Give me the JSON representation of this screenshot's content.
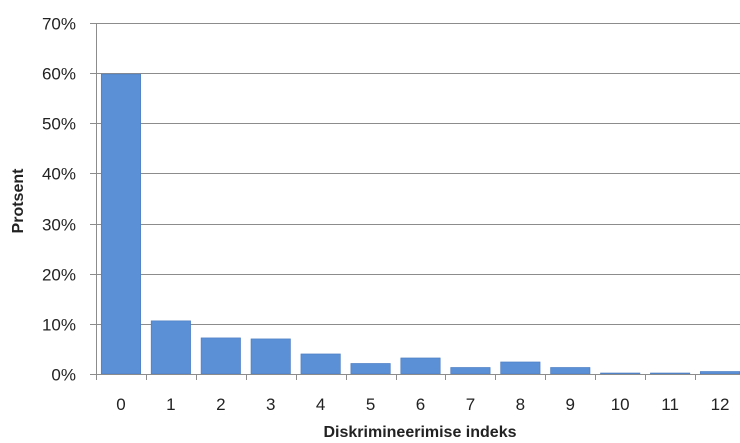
{
  "chart_data": {
    "type": "bar",
    "title": "",
    "xlabel": "Diskrimineerimise indeks",
    "ylabel": "Protsent",
    "categories": [
      "0",
      "1",
      "2",
      "3",
      "4",
      "5",
      "6",
      "7",
      "8",
      "9",
      "10",
      "11",
      "12"
    ],
    "values": [
      59.8,
      10.6,
      7.2,
      7.0,
      4.0,
      2.1,
      3.2,
      1.3,
      2.4,
      1.3,
      0.2,
      0.2,
      0.5
    ],
    "ylim": [
      0,
      70
    ],
    "yticks": [
      0,
      10,
      20,
      30,
      40,
      50,
      60,
      70
    ],
    "ytick_labels": [
      "0%",
      "10%",
      "20%",
      "30%",
      "40%",
      "50%",
      "60%",
      "70%"
    ],
    "grid": true,
    "legend": "none",
    "bar_color": "#5B8FD6",
    "bar_edge_color": "#4A7BC0",
    "grid_color": "#8C8C8C"
  }
}
